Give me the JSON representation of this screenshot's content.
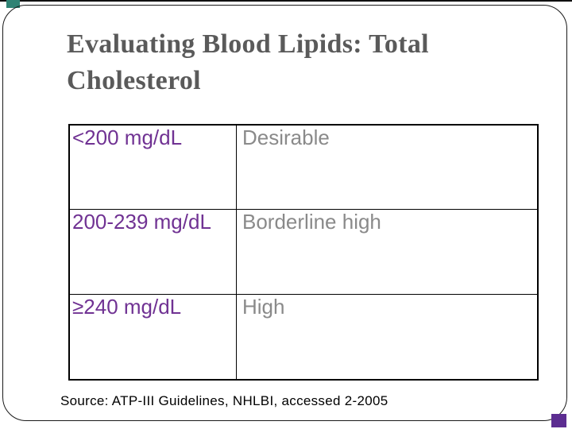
{
  "slide": {
    "title": "Evaluating Blood Lipids: Total Cholesterol",
    "table": {
      "rows": [
        {
          "range": "<200 mg/dL",
          "category": "Desirable"
        },
        {
          "range": "200-239 mg/dL",
          "category": "Borderline high"
        },
        {
          "range": "≥240 mg/dL",
          "category": "High"
        }
      ]
    },
    "source": "Source: ATP-III Guidelines, NHLBI, accessed 2-2005",
    "colors": {
      "title_text": "#5A5A5A",
      "range_text": "#703293",
      "category_text": "#8A8A8A",
      "table_border": "#000000",
      "accent_teal": "#2F8374",
      "accent_purple": "#5C2D91",
      "frame_border": "#1A1A1A"
    }
  }
}
